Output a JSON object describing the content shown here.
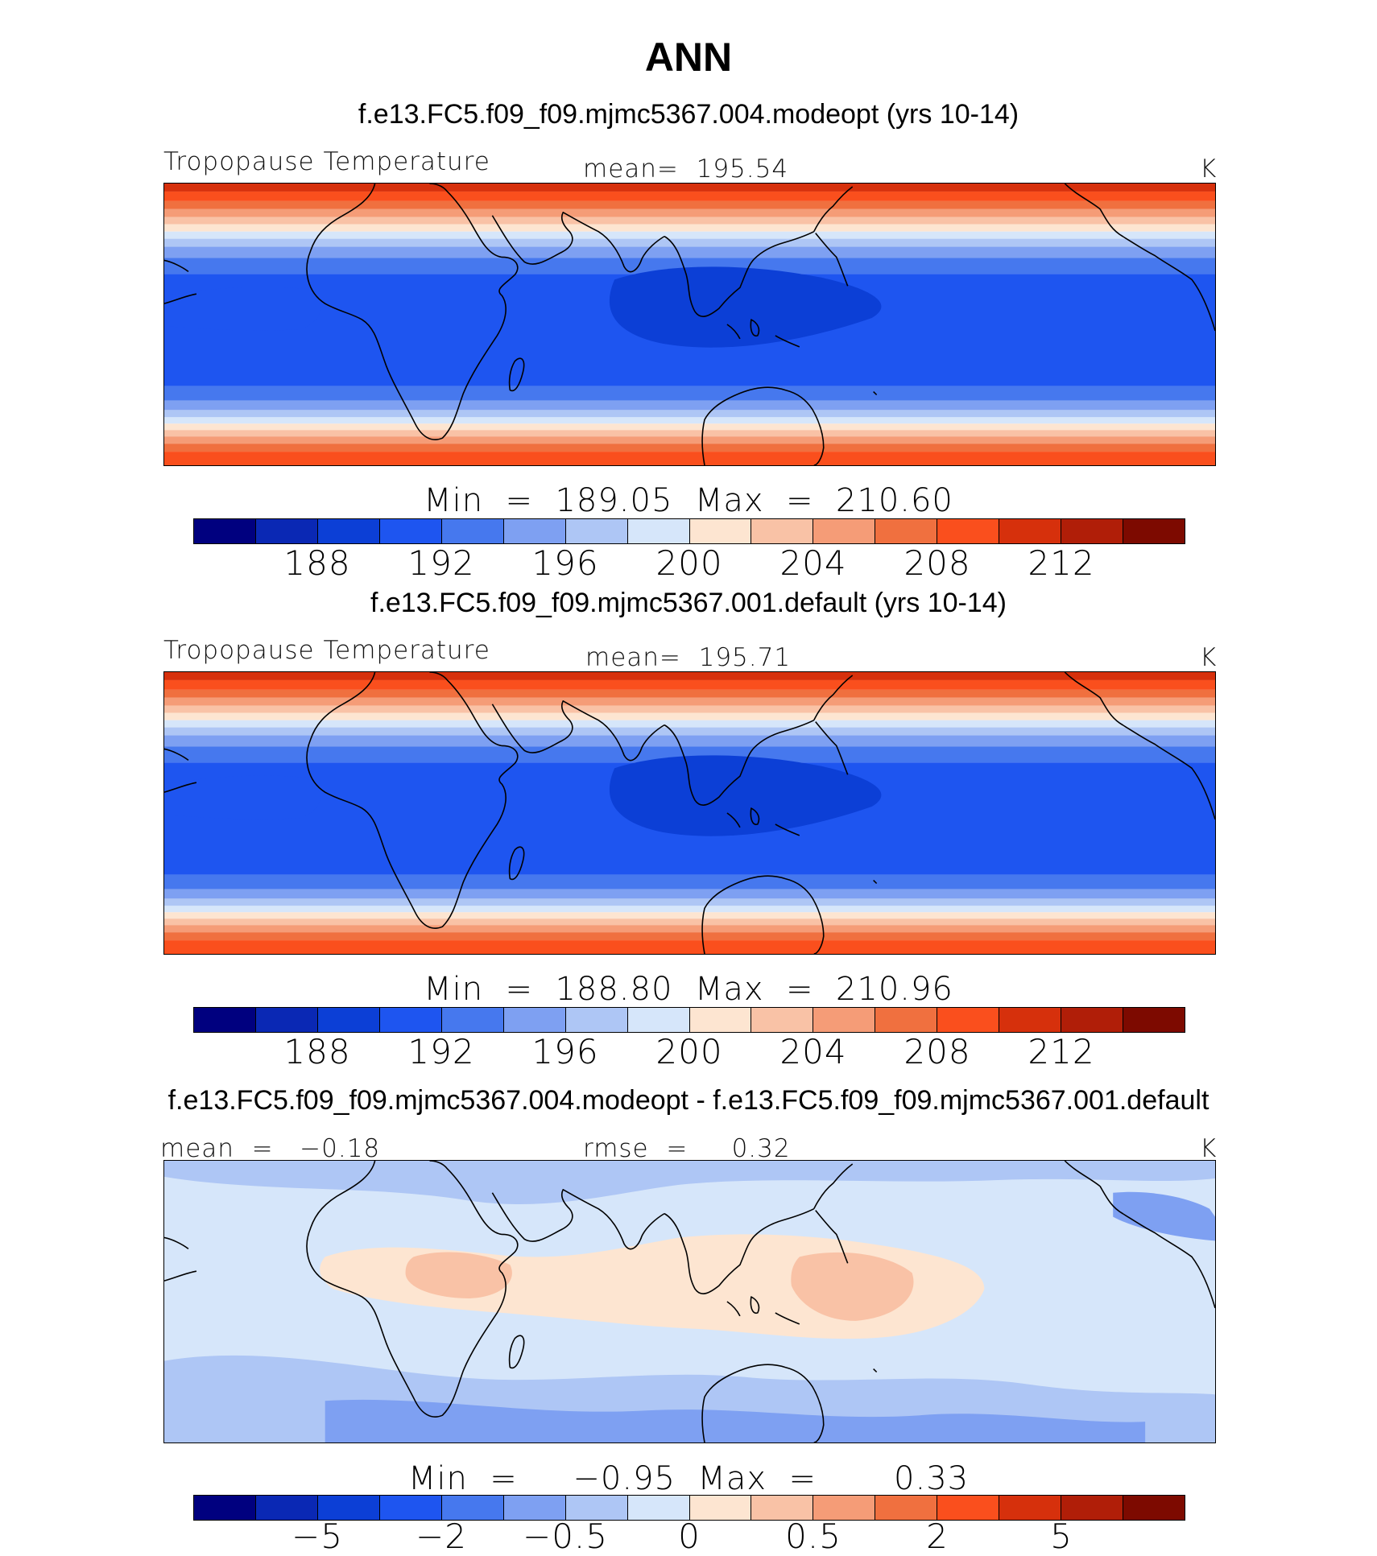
{
  "figure": {
    "title": "ANN"
  },
  "panels": [
    {
      "title": "f.e13.FC5.f09_f09.mjmc5367.004.modeopt (yrs 10-14)",
      "left_label": "Tropopause Temperature",
      "center_label": "mean=  195.54",
      "units": "K",
      "minmax": "Min  =  189.05  Max  =  210.60",
      "field": "abs",
      "ticks": [
        "188",
        "192",
        "196",
        "200",
        "204",
        "208",
        "212"
      ]
    },
    {
      "title": "f.e13.FC5.f09_f09.mjmc5367.001.default (yrs 10-14)",
      "left_label": "Tropopause Temperature",
      "center_label": "mean=  195.71",
      "units": "K",
      "minmax": "Min  =  188.80  Max  =  210.96",
      "field": "abs",
      "ticks": [
        "188",
        "192",
        "196",
        "200",
        "204",
        "208",
        "212"
      ]
    },
    {
      "title": "f.e13.FC5.f09_f09.mjmc5367.004.modeopt - f.e13.FC5.f09_f09.mjmc5367.001.default",
      "left_label": "mean  =   −0.18",
      "center_label": "rmse  =     0.32",
      "units": "K",
      "minmax": "Min  =     −0.95  Max  =       0.33",
      "field": "diff",
      "ticks": [
        "−5",
        "−2",
        "−0.5",
        "0",
        "0.5",
        "2",
        "5"
      ]
    }
  ],
  "colorbar_colors": [
    "#00007f",
    "#0a28b4",
    "#0c3fd6",
    "#1e55f0",
    "#4678ee",
    "#7ea0f2",
    "#aec6f5",
    "#d6e6fa",
    "#fde5d1",
    "#f9c2a6",
    "#f59c77",
    "#f0703f",
    "#fa4f1d",
    "#d6300c",
    "#b01e08",
    "#7d0a00"
  ]
}
